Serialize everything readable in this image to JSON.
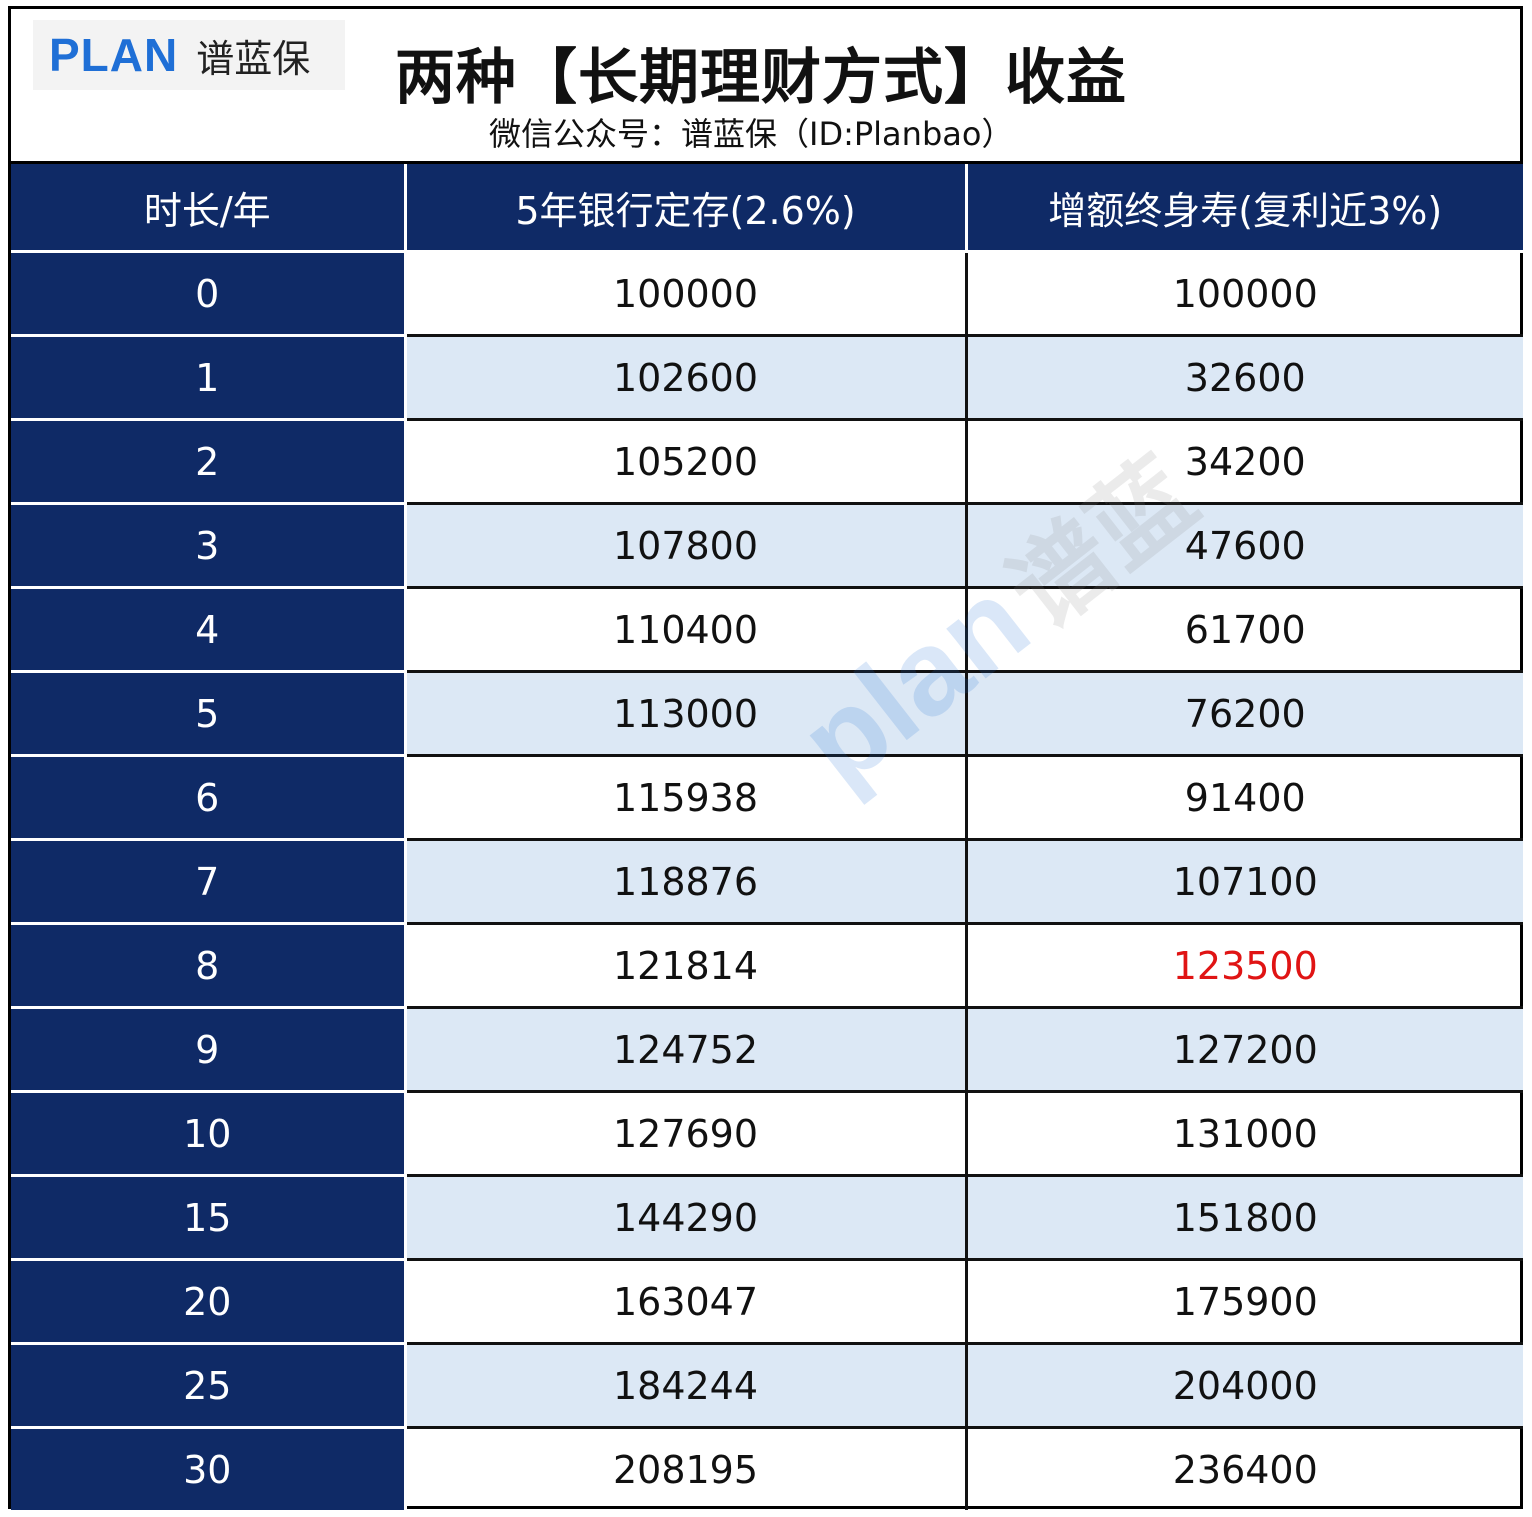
{
  "logo": {
    "latin": "PLAN",
    "cjk": "谱蓝保"
  },
  "title": "两种【长期理财方式】收益",
  "subtitle": "微信公众号：谱蓝保（ID:Planbao）",
  "watermark": {
    "latin": "plan",
    "cjk": "谱蓝"
  },
  "colors": {
    "header_bg": "#0f2a66",
    "alt_row": "#dce8f5",
    "highlight": "#e01414",
    "brand": "#1f6fd6"
  },
  "chart_data": {
    "type": "table",
    "columns": [
      "时长/年",
      "5年银行定存(2.6%)",
      "增额终身寿(复利近3%)"
    ],
    "rows": [
      {
        "year": "0",
        "bank": "100000",
        "insurance": "100000"
      },
      {
        "year": "1",
        "bank": "102600",
        "insurance": "32600"
      },
      {
        "year": "2",
        "bank": "105200",
        "insurance": "34200"
      },
      {
        "year": "3",
        "bank": "107800",
        "insurance": "47600"
      },
      {
        "year": "4",
        "bank": "110400",
        "insurance": "61700"
      },
      {
        "year": "5",
        "bank": "113000",
        "insurance": "76200"
      },
      {
        "year": "6",
        "bank": "115938",
        "insurance": "91400"
      },
      {
        "year": "7",
        "bank": "118876",
        "insurance": "107100"
      },
      {
        "year": "8",
        "bank": "121814",
        "insurance": "123500",
        "highlight": true
      },
      {
        "year": "9",
        "bank": "124752",
        "insurance": "127200"
      },
      {
        "year": "10",
        "bank": "127690",
        "insurance": "131000"
      },
      {
        "year": "15",
        "bank": "144290",
        "insurance": "151800"
      },
      {
        "year": "20",
        "bank": "163047",
        "insurance": "175900"
      },
      {
        "year": "25",
        "bank": "184244",
        "insurance": "204000"
      },
      {
        "year": "30",
        "bank": "208195",
        "insurance": "236400"
      }
    ]
  }
}
